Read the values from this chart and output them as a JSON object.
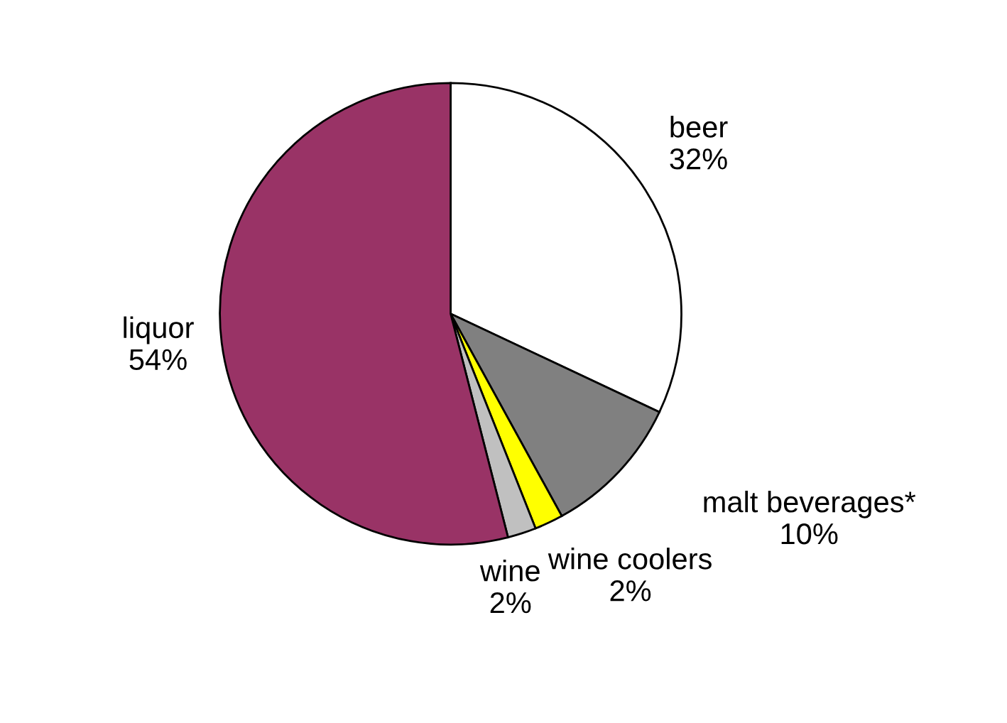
{
  "chart_data": {
    "type": "pie",
    "categories": [
      "beer",
      "malt beverages*",
      "wine coolers",
      "wine",
      "liquor"
    ],
    "values": [
      32,
      10,
      2,
      2,
      54
    ],
    "value_labels": [
      "32%",
      "10%",
      "2%",
      "2%",
      "54%"
    ],
    "colors": [
      "#ffffff",
      "#808080",
      "#ffff00",
      "#c0c0c0",
      "#993366"
    ],
    "legend": false
  }
}
